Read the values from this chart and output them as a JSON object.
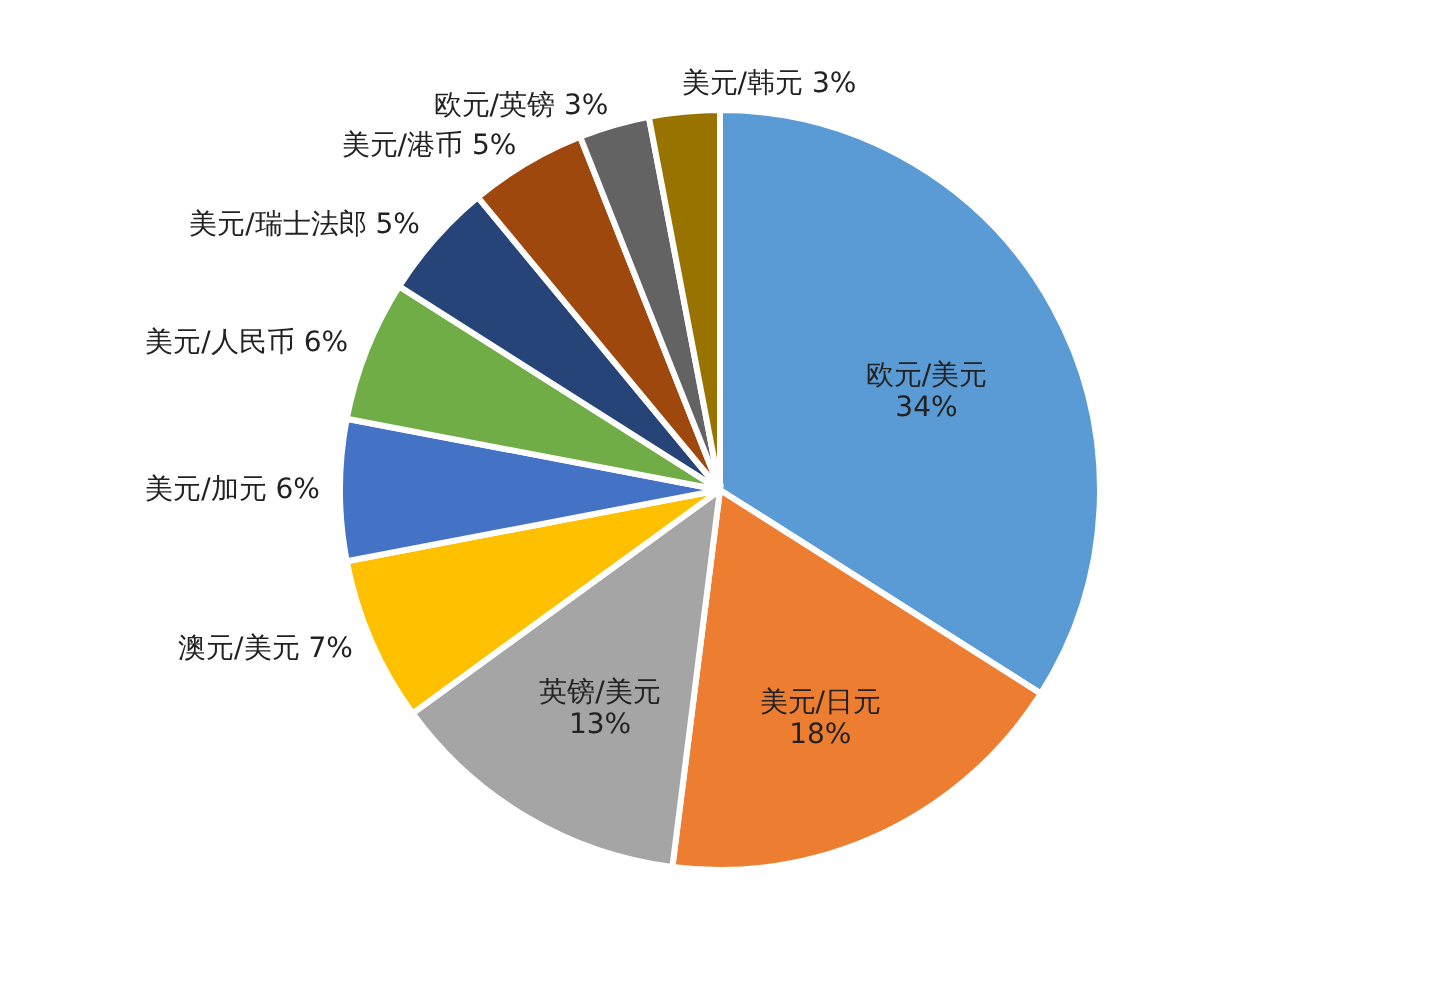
{
  "chart_data": {
    "type": "pie",
    "categories": [
      "欧元/美元",
      "美元/日元",
      "英镑/美元",
      "澳元/美元",
      "美元/加元",
      "美元/人民币",
      "美元/瑞士法郎",
      "美元/港币",
      "欧元/英镑",
      "美元/韩元"
    ],
    "values": [
      34,
      18,
      13,
      7,
      6,
      6,
      5,
      5,
      3,
      3
    ],
    "value_labels": [
      "34%",
      "18%",
      "13%",
      "7%",
      "6%",
      "6%",
      "5%",
      "5%",
      "3%",
      "3%"
    ],
    "colors": [
      "#5b9bd5",
      "#ed7d31",
      "#a5a5a5",
      "#ffc000",
      "#4472c4",
      "#70ad47",
      "#264478",
      "#9e480e",
      "#636363",
      "#997300"
    ],
    "legend": false
  }
}
